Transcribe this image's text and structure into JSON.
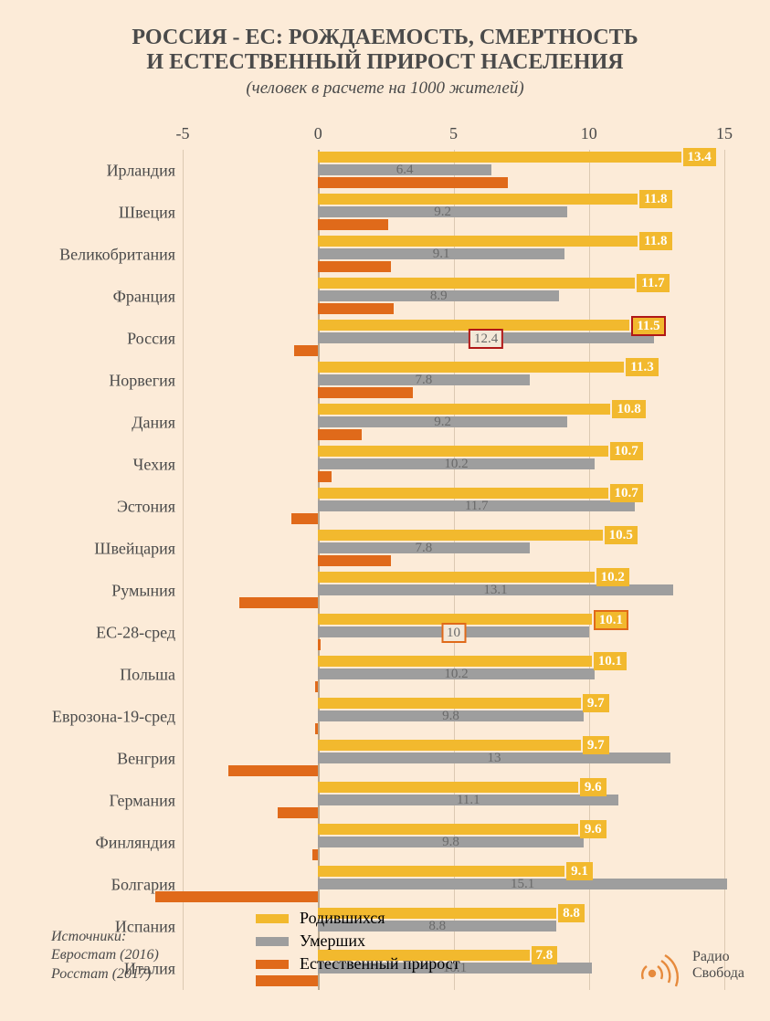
{
  "title_line1": "РОССИЯ - ЕС: РОЖДАЕМОСТЬ, СМЕРТНОСТЬ",
  "title_line2": "И ЕСТЕСТВЕННЫЙ ПРИРОСТ НАСЕЛЕНИЯ",
  "subtitle": "(человек в расчете на 1000 жителей)",
  "title_fontsize": 24,
  "title_color": "#4a4a4a",
  "subtitle_fontsize": 19,
  "subtitle_color": "#4a4a4a",
  "background_color": "#fcebd8",
  "axis": {
    "min": -5,
    "max": 15,
    "ticks": [
      -5,
      0,
      5,
      10,
      15
    ],
    "tick_fontsize": 18,
    "tick_color": "#4a4a4a",
    "gridline_color": "#dcc9b2",
    "zero_line_color": "#b8a890"
  },
  "row_label_fontsize": 18,
  "row_label_color": "#4a4a4a",
  "series_colors": {
    "birth": "#f2b92e",
    "death": "#9e9e9e",
    "growth": "#e06a1a"
  },
  "value_label": {
    "birth_bg": "#f2b92e",
    "birth_text": "#ffffff",
    "death_text": "#6a6a6a",
    "highlight_russia_border": "#b01818",
    "highlight_eu28_border": "#e06a1a",
    "highlight_death_bg": "#f3e8d8"
  },
  "rows": [
    {
      "label": "Ирландия",
      "birth": 13.4,
      "death": 6.4,
      "growth": 7.0,
      "highlight": null
    },
    {
      "label": "Швеция",
      "birth": 11.8,
      "death": 9.2,
      "growth": 2.6,
      "highlight": null
    },
    {
      "label": "Великобритания",
      "birth": 11.8,
      "death": 9.1,
      "growth": 2.7,
      "highlight": null
    },
    {
      "label": "Франция",
      "birth": 11.7,
      "death": 8.9,
      "growth": 2.8,
      "highlight": null
    },
    {
      "label": "Россия",
      "birth": 11.5,
      "death": 12.4,
      "growth": -0.9,
      "highlight": "russia"
    },
    {
      "label": "Норвегия",
      "birth": 11.3,
      "death": 7.8,
      "growth": 3.5,
      "highlight": null
    },
    {
      "label": "Дания",
      "birth": 10.8,
      "death": 9.2,
      "growth": 1.6,
      "highlight": null
    },
    {
      "label": "Чехия",
      "birth": 10.7,
      "death": 10.2,
      "growth": 0.5,
      "highlight": null
    },
    {
      "label": "Эстония",
      "birth": 10.7,
      "death": 11.7,
      "growth": -1.0,
      "highlight": null
    },
    {
      "label": "Швейцария",
      "birth": 10.5,
      "death": 7.8,
      "growth": 2.7,
      "highlight": null
    },
    {
      "label": "Румыния",
      "birth": 10.2,
      "death": 13.1,
      "growth": -2.9,
      "highlight": null
    },
    {
      "label": "ЕС-28-сред",
      "birth": 10.1,
      "death": 10.0,
      "growth": 0.1,
      "highlight": "eu28"
    },
    {
      "label": "Польша",
      "birth": 10.1,
      "death": 10.2,
      "growth": -0.1,
      "highlight": null
    },
    {
      "label": "Еврозона-19-сред",
      "birth": 9.7,
      "death": 9.8,
      "growth": -0.1,
      "highlight": null
    },
    {
      "label": "Венгрия",
      "birth": 9.7,
      "death": 13.0,
      "growth": -3.3,
      "highlight": null
    },
    {
      "label": "Германия",
      "birth": 9.6,
      "death": 11.1,
      "growth": -1.5,
      "highlight": null
    },
    {
      "label": "Финляндия",
      "birth": 9.6,
      "death": 9.8,
      "growth": -0.2,
      "highlight": null
    },
    {
      "label": "Болгария",
      "birth": 9.1,
      "death": 15.1,
      "growth": -6.0,
      "highlight": null
    },
    {
      "label": "Испания",
      "birth": 8.8,
      "death": 8.8,
      "growth": 0.0,
      "highlight": null
    },
    {
      "label": "Италия",
      "birth": 7.8,
      "death": 10.1,
      "growth": -2.3,
      "highlight": null
    }
  ],
  "legend": {
    "birth": "Родившихся",
    "death": "Умерших",
    "growth": "Естественный прирост"
  },
  "sources": {
    "label": "Источники:",
    "line1": "Евростат (2016)",
    "line2": "Росстат (2017)"
  },
  "brand": {
    "line1": "Радио",
    "line2": "Свобода",
    "icon_color": "#e68a3c"
  }
}
